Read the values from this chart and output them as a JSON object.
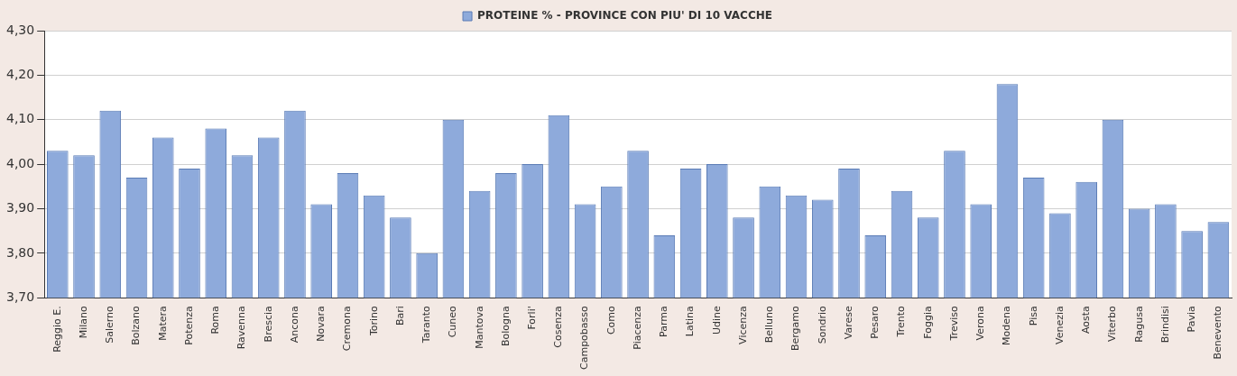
{
  "chart_data": {
    "type": "bar",
    "categories": [
      "Reggio E.",
      "Milano",
      "Salerno",
      "Bolzano",
      "Matera",
      "Potenza",
      "Roma",
      "Ravenna",
      "Brescia",
      "Ancona",
      "Novara",
      "Cremona",
      "Torino",
      "Bari",
      "Taranto",
      "Cuneo",
      "Mantova",
      "Bologna",
      "Forli'",
      "Cosenza",
      "Campobasso",
      "Como",
      "Piacenza",
      "Parma",
      "Latina",
      "Udine",
      "Vicenza",
      "Belluno",
      "Bergamo",
      "Sondrio",
      "Varese",
      "Pesaro",
      "Trento",
      "Foggia",
      "Treviso",
      "Verona",
      "Modena",
      "Pisa",
      "Venezia",
      "Aosta",
      "Viterbo",
      "Ragusa",
      "Brindisi",
      "Pavia",
      "Benevento"
    ],
    "series": [
      {
        "name": "PROTEINE % - PROVINCE CON PIU' DI 10 VACCHE",
        "color": "#8eaadb",
        "values": [
          4.03,
          4.02,
          4.12,
          3.97,
          4.06,
          3.99,
          4.08,
          4.02,
          4.06,
          4.12,
          3.91,
          3.98,
          3.93,
          3.88,
          3.8,
          4.1,
          3.94,
          3.98,
          4.0,
          4.11,
          3.91,
          3.95,
          4.03,
          3.84,
          3.99,
          4.0,
          3.88,
          3.95,
          3.93,
          3.92,
          3.99,
          3.84,
          3.94,
          3.88,
          4.03,
          3.91,
          4.18,
          3.97,
          3.89,
          3.96,
          4.1,
          3.9,
          3.91,
          3.85,
          3.87
        ]
      }
    ],
    "ylim": [
      3.7,
      4.3
    ],
    "yticks": [
      {
        "value": 3.7,
        "label": "3,70"
      },
      {
        "value": 3.8,
        "label": "3,80"
      },
      {
        "value": 3.9,
        "label": "3,90"
      },
      {
        "value": 4.0,
        "label": "4,00"
      },
      {
        "value": 4.1,
        "label": "4,10"
      },
      {
        "value": 4.2,
        "label": "4,20"
      },
      {
        "value": 4.3,
        "label": "4,30"
      }
    ],
    "grid": "y",
    "legend": "top"
  }
}
